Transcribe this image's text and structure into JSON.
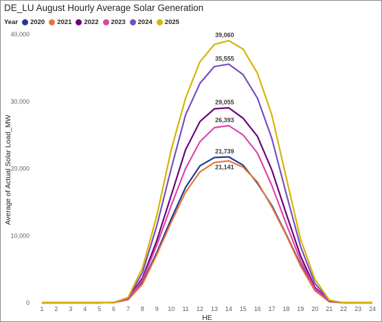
{
  "title": "DE_LU August Hourly Average Solar Generation",
  "legend": {
    "title": "Year",
    "items": [
      {
        "label": "2020",
        "color": "#1f3a93"
      },
      {
        "label": "2021",
        "color": "#e8743b"
      },
      {
        "label": "2022",
        "color": "#6b007b"
      },
      {
        "label": "2023",
        "color": "#e044a7"
      },
      {
        "label": "2024",
        "color": "#744ec2"
      },
      {
        "label": "2025",
        "color": "#d9b300"
      }
    ]
  },
  "chart_data": {
    "type": "line",
    "title": "DE_LU August Hourly Average Solar Generation",
    "xlabel": "HE",
    "ylabel": "Average of Actual Solar Load_MW",
    "x": [
      1,
      2,
      3,
      4,
      5,
      6,
      7,
      8,
      9,
      10,
      11,
      12,
      13,
      14,
      15,
      16,
      17,
      18,
      19,
      20,
      21,
      22,
      23,
      24
    ],
    "ylim": [
      0,
      40000
    ],
    "yticks": [
      0,
      10000,
      20000,
      30000,
      40000
    ],
    "ytick_labels": [
      "0",
      "10,000",
      "20,000",
      "30,000",
      "40,000"
    ],
    "legend_position": "top-left",
    "grid": false,
    "series": [
      {
        "name": "2020",
        "color": "#1f3a93",
        "values": [
          0,
          0,
          0,
          0,
          0,
          30,
          500,
          3000,
          7500,
          12500,
          17200,
          20400,
          21650,
          21739,
          20500,
          17800,
          14500,
          10200,
          5700,
          2000,
          200,
          0,
          0,
          0
        ]
      },
      {
        "name": "2021",
        "color": "#e8743b",
        "values": [
          0,
          0,
          0,
          0,
          0,
          30,
          450,
          2800,
          7200,
          12000,
          16500,
          19500,
          20900,
          21141,
          20200,
          18000,
          14300,
          10100,
          5500,
          1800,
          150,
          0,
          0,
          0
        ]
      },
      {
        "name": "2022",
        "color": "#6b007b",
        "values": [
          0,
          0,
          0,
          0,
          0,
          40,
          600,
          3700,
          9300,
          16000,
          22800,
          27000,
          28900,
          29055,
          27500,
          24800,
          19800,
          13300,
          7000,
          2300,
          250,
          0,
          0,
          0
        ]
      },
      {
        "name": "2023",
        "color": "#e044a7",
        "values": [
          0,
          0,
          0,
          0,
          0,
          40,
          550,
          3400,
          8600,
          14500,
          20000,
          24000,
          26100,
          26393,
          25000,
          22300,
          17500,
          11800,
          6300,
          2100,
          220,
          0,
          0,
          0
        ]
      },
      {
        "name": "2024",
        "color": "#744ec2",
        "values": [
          0,
          0,
          0,
          0,
          0,
          50,
          700,
          4500,
          11500,
          20000,
          28000,
          32700,
          35200,
          35555,
          34000,
          30500,
          24500,
          16300,
          8400,
          2900,
          300,
          0,
          0,
          0
        ]
      },
      {
        "name": "2025",
        "color": "#d9b300",
        "values": [
          0,
          0,
          0,
          0,
          0,
          60,
          800,
          5200,
          13000,
          22800,
          30500,
          35900,
          38500,
          39060,
          37800,
          34200,
          28000,
          18700,
          9500,
          3500,
          400,
          0,
          0,
          0
        ]
      }
    ],
    "data_labels": [
      {
        "series": "2025",
        "x": 14,
        "text": "39,060",
        "position": "above"
      },
      {
        "series": "2024",
        "x": 14,
        "text": "35,555",
        "position": "above"
      },
      {
        "series": "2022",
        "x": 14,
        "text": "29,055",
        "position": "above"
      },
      {
        "series": "2023",
        "x": 14,
        "text": "26,393",
        "position": "above"
      },
      {
        "series": "2020",
        "x": 14,
        "text": "21,739",
        "position": "above"
      },
      {
        "series": "2021",
        "x": 14,
        "text": "21,141",
        "position": "below"
      }
    ]
  }
}
